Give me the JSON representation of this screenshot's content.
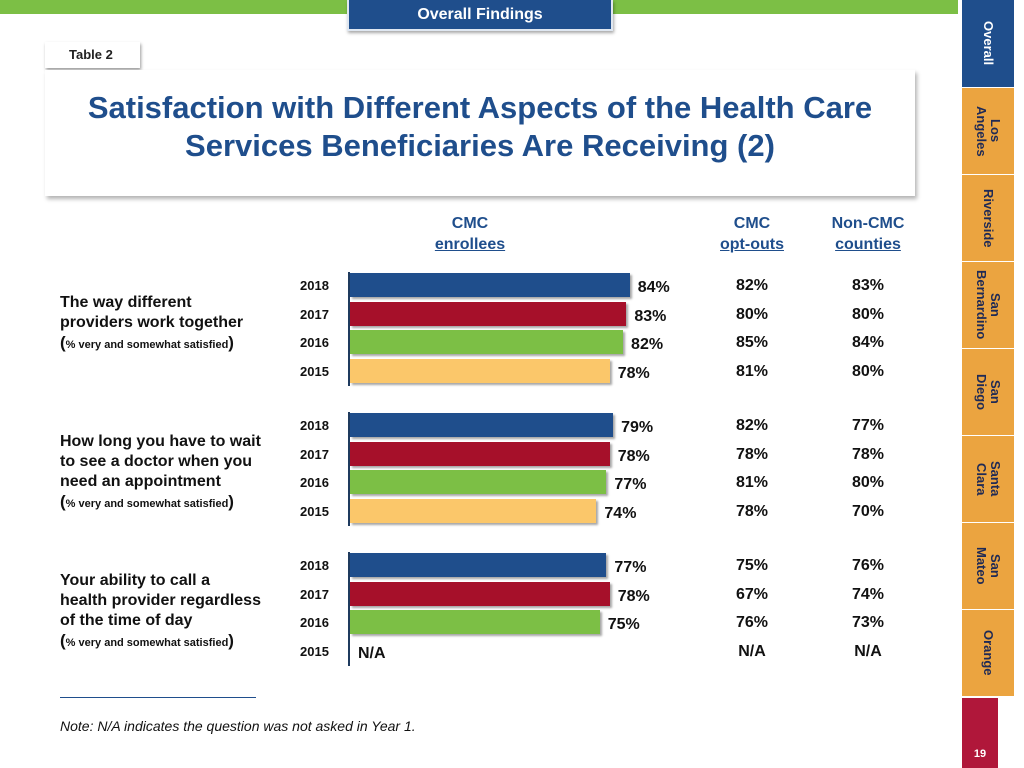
{
  "header": {
    "section_tab": "Overall Findings",
    "table_tab": "Table 2",
    "title_line1": "Satisfaction with Different Aspects of the Health Care",
    "title_line2": "Services Beneficiaries Are Receiving (2)"
  },
  "columns": {
    "cmc_line1": "CMC",
    "cmc_line2": "enrollees",
    "optout_line1": "CMC",
    "optout_line2": "opt-outs",
    "noncmc_line1": "Non-CMC",
    "noncmc_line2": "counties"
  },
  "colors": {
    "2018": "#1f4e8c",
    "2017": "#a6102a",
    "2016": "#7cbf45",
    "2015": "#fbc76a",
    "brand": "#1f4e8c",
    "tab": "#eba440"
  },
  "chart_data": {
    "type": "bar",
    "orientation": "horizontal",
    "title": "Satisfaction with Different Aspects of the Health Care Services Beneficiaries Are Receiving (2)",
    "years": [
      "2018",
      "2017",
      "2016",
      "2015"
    ],
    "xlim": [
      0,
      100
    ],
    "groups": [
      {
        "line1": "The way different",
        "line2": "providers work together",
        "sub": "% very and somewhat satisfied",
        "cmc": [
          84,
          83,
          82,
          78
        ],
        "cmc_labels": [
          "84%",
          "83%",
          "82%",
          "78%"
        ],
        "optout": [
          "82%",
          "80%",
          "85%",
          "81%"
        ],
        "noncmc": [
          "83%",
          "80%",
          "84%",
          "80%"
        ]
      },
      {
        "line1": "How long you have to wait",
        "line2": "to see a doctor when you",
        "line3": "need an appointment",
        "sub": "% very  and somewhat satisfied",
        "cmc": [
          79,
          78,
          77,
          74
        ],
        "cmc_labels": [
          "79%",
          "78%",
          "77%",
          "74%"
        ],
        "optout": [
          "82%",
          "78%",
          "81%",
          "78%"
        ],
        "noncmc": [
          "77%",
          "78%",
          "80%",
          "70%"
        ]
      },
      {
        "line1": "Your ability to call a",
        "line2": "health provider regardless",
        "line3": "of the time of day",
        "sub": "% very and somewhat satisfied",
        "cmc": [
          77,
          78,
          75,
          null
        ],
        "cmc_labels": [
          "77%",
          "78%",
          "75%",
          "N/A"
        ],
        "optout": [
          "75%",
          "67%",
          "76%",
          "N/A"
        ],
        "noncmc": [
          "76%",
          "74%",
          "73%",
          "N/A"
        ]
      }
    ]
  },
  "note": "Note: N/A indicates the question was not asked in Year 1.",
  "sidebar": {
    "items": [
      "Overall",
      "Los\nAngeles",
      "Riverside",
      "San\nBernardino",
      "San\nDiego",
      "Santa\nClara",
      "San\nMateo",
      "Orange"
    ]
  },
  "page_number": "19"
}
